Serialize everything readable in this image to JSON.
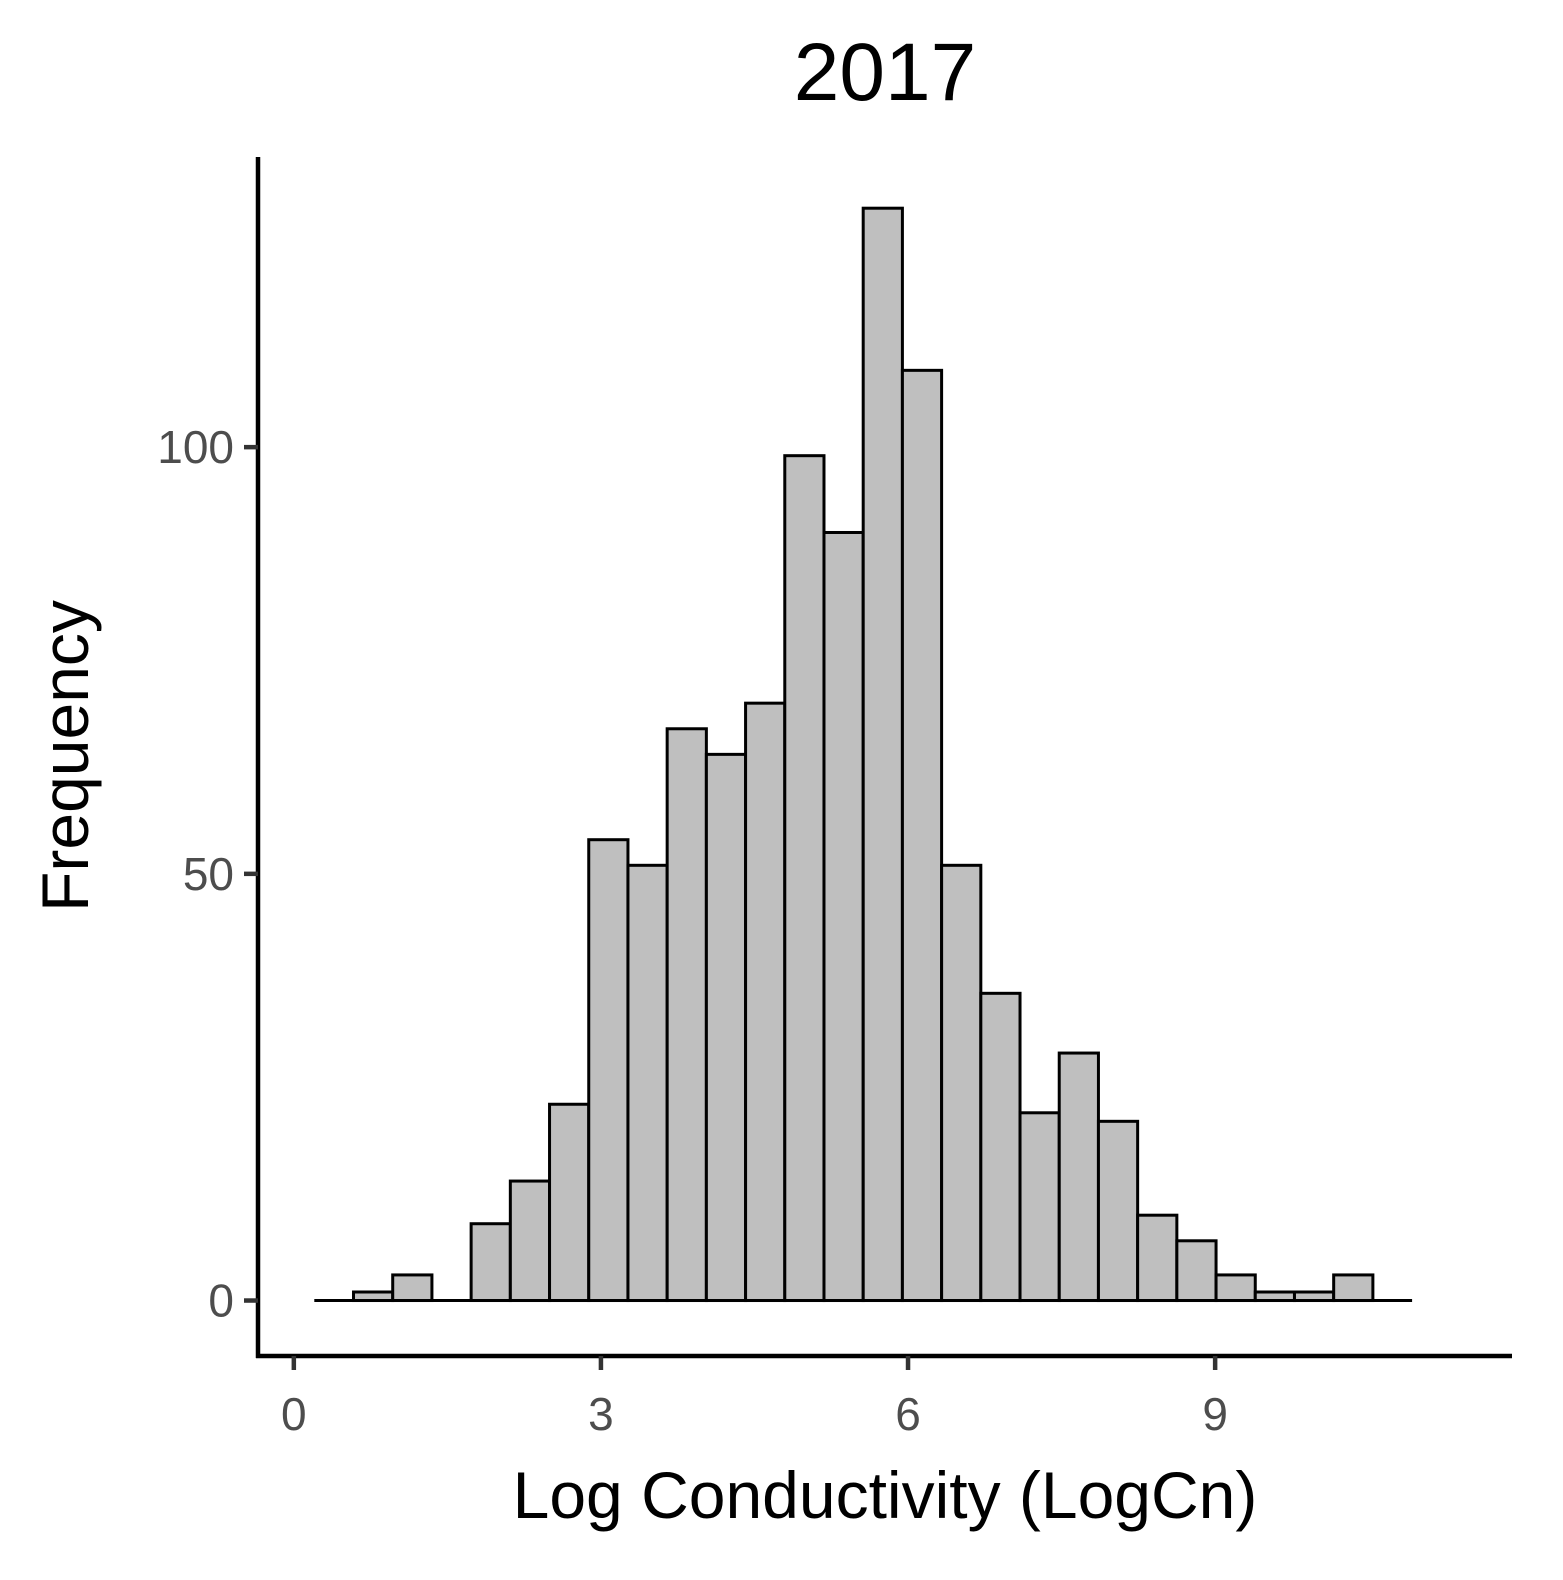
{
  "chart_data": {
    "type": "bar",
    "subtype": "histogram",
    "title": "2017",
    "xlabel": "Log Conductivity (LogCn)",
    "ylabel": "Frequency",
    "xlim": [
      -0.35,
      11.9
    ],
    "ylim": [
      -6.5,
      134
    ],
    "x_ticks": [
      0,
      3,
      6,
      9
    ],
    "x_tick_labels": [
      "0",
      "3",
      "6",
      "9"
    ],
    "y_ticks": [
      0,
      50,
      100
    ],
    "y_tick_labels": [
      "0",
      "50",
      "100"
    ],
    "bin_start": 0.2,
    "bin_width": 0.383,
    "values": [
      0,
      1,
      3,
      0,
      9,
      14,
      23,
      54,
      51,
      67,
      64,
      70,
      99,
      90,
      128,
      109,
      51,
      36,
      22,
      29,
      21,
      10,
      7,
      3,
      1,
      1,
      3,
      0
    ],
    "grid": false,
    "bar_fill": "#bfbfbf",
    "bar_stroke": "#000000"
  }
}
